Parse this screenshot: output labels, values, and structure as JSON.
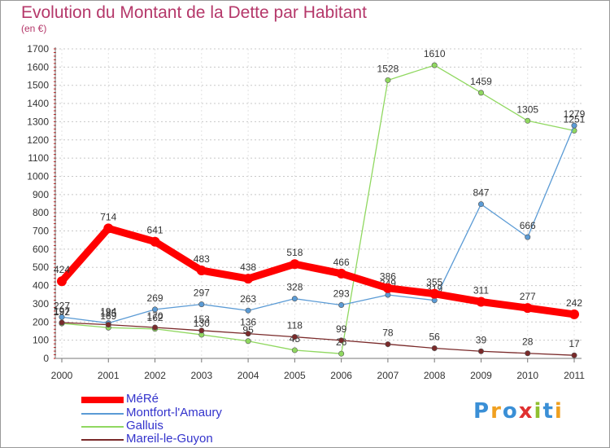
{
  "chart_data": {
    "type": "line",
    "title": "Evolution du Montant de la Dette par Habitant",
    "subtitle": "(en €)",
    "xlabel": "",
    "ylabel": "",
    "ylim": [
      0,
      1700
    ],
    "yticks": [
      0,
      100,
      200,
      300,
      400,
      500,
      600,
      700,
      800,
      900,
      1000,
      1100,
      1200,
      1300,
      1400,
      1500,
      1600,
      1700
    ],
    "x": [
      "2000",
      "2001",
      "2002",
      "2003",
      "2004",
      "2005",
      "2006",
      "2007",
      "2008",
      "2009",
      "2010",
      "2011"
    ],
    "grid": "horizontal dashed",
    "legend_position": "bottom-left",
    "series": [
      {
        "name": "MéRé",
        "color": "#ff0000",
        "values": [
          424,
          714,
          641,
          483,
          438,
          518,
          466,
          386,
          355,
          311,
          277,
          242
        ]
      },
      {
        "name": "Montfort-l'Amaury",
        "color": "#5b9bd5",
        "values": [
          227,
          194,
          269,
          297,
          263,
          328,
          293,
          349,
          319,
          847,
          666,
          1279
        ]
      },
      {
        "name": "Galluis",
        "color": "#90d860",
        "values": [
          192,
          169,
          162,
          130,
          95,
          45,
          26,
          1528,
          1610,
          1459,
          1305,
          1251
        ]
      },
      {
        "name": "Mareil-le-Guyon",
        "color": "#7a2a2a",
        "values": [
          197,
          185,
          170,
          153,
          136,
          118,
          99,
          78,
          56,
          39,
          28,
          17
        ]
      }
    ]
  },
  "logo": {
    "text": "Proxiti",
    "letter_colors": [
      "#3a8fd6",
      "#f0a020",
      "#3a8fd6",
      "#e03030",
      "#90c030",
      "#3a8fd6",
      "#f0a020"
    ]
  }
}
